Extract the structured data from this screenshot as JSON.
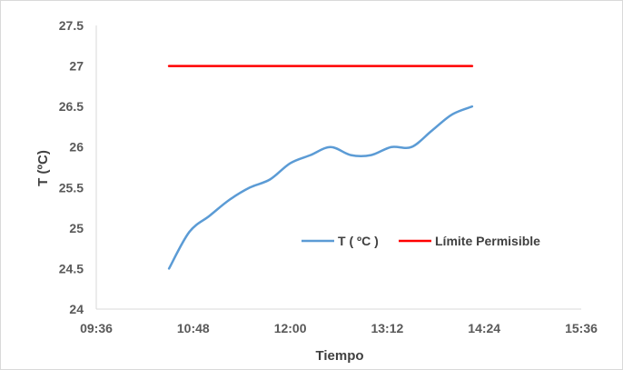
{
  "chart_data": {
    "type": "line",
    "xlabel": "Tiempo",
    "ylabel": "T (ºC)",
    "x_ticks": [
      "09:36",
      "10:48",
      "12:00",
      "13:12",
      "14:24",
      "15:36"
    ],
    "x_range_minutes": [
      576,
      936
    ],
    "y_ticks": [
      "24",
      "24.5",
      "25",
      "25.5",
      "26",
      "26.5",
      "27",
      "27.5"
    ],
    "ylim": [
      24,
      27.5
    ],
    "grid": false,
    "legend_position": "center-right",
    "series": [
      {
        "name": "T ( ºC )",
        "color": "#5b9bd5",
        "x": [
          "10:30",
          "10:45",
          "11:00",
          "11:15",
          "11:30",
          "11:45",
          "12:00",
          "12:15",
          "12:30",
          "12:45",
          "13:00",
          "13:15",
          "13:30",
          "13:45",
          "14:00",
          "14:15"
        ],
        "y": [
          24.5,
          24.95,
          25.15,
          25.35,
          25.5,
          25.6,
          25.8,
          25.9,
          26.0,
          25.9,
          25.9,
          26.0,
          26.0,
          26.2,
          26.4,
          26.5
        ]
      },
      {
        "name": "Límite Permisible",
        "color": "#ff0000",
        "x": [
          "10:30",
          "14:15"
        ],
        "y": [
          27,
          27
        ]
      }
    ]
  }
}
